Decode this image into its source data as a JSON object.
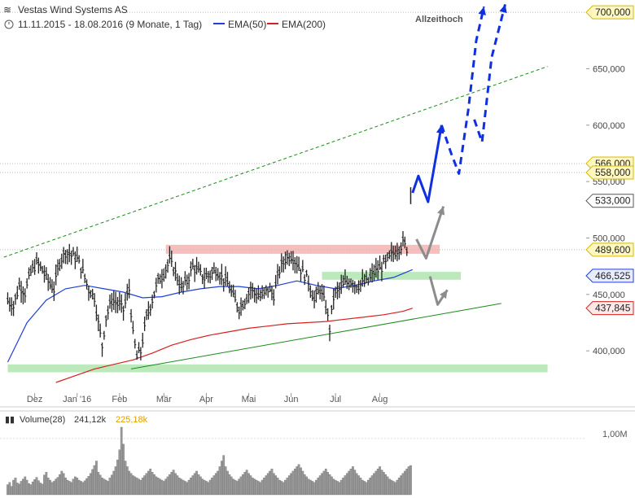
{
  "header": {
    "title": "Vestas Wind Systems AS",
    "period": "11.11.2015 - 18.08.2016 (9 Monate, 1 Tag)",
    "ema50_label": "EMA(50)",
    "ema200_label": "EMA(200)",
    "annotation": "Allzeithoch"
  },
  "colors": {
    "ema50": "#1f3fd6",
    "ema200": "#d62020",
    "resistance_zone": "#f5a3a3",
    "support_zone": "#9fe0a0",
    "trend_green": "#1a8a1a",
    "projection_blue": "#1030e0",
    "projection_grey": "#8c8c8c",
    "price_bar": "#222222",
    "volume_bar": "#999999"
  },
  "chart_data": {
    "type": "ohlc",
    "ylim": [
      372,
      708
    ],
    "xlim_index": [
      0,
      220
    ],
    "months": [
      {
        "label": "Dez",
        "index": 14
      },
      {
        "label": "Jan '16",
        "index": 36
      },
      {
        "label": "Feb",
        "index": 58
      },
      {
        "label": "Mär",
        "index": 81
      },
      {
        "label": "Apr",
        "index": 103
      },
      {
        "label": "Mai",
        "index": 125
      },
      {
        "label": "Jun",
        "index": 147
      },
      {
        "label": "Jul",
        "index": 170
      },
      {
        "label": "Aug",
        "index": 193
      }
    ],
    "y_ticks": [
      {
        "value": 400,
        "label": "400,000"
      },
      {
        "value": 450,
        "label": "450,000"
      },
      {
        "value": 500,
        "label": "500,000"
      },
      {
        "value": 550,
        "label": "550,000"
      },
      {
        "value": 600,
        "label": "600,000"
      },
      {
        "value": 650,
        "label": "650,000"
      }
    ],
    "marked_levels": [
      {
        "value": 700,
        "label": "700,000",
        "style": "yellow"
      },
      {
        "value": 566,
        "label": "566,000",
        "style": "yellow"
      },
      {
        "value": 558,
        "label": "558,000",
        "style": "yellow"
      },
      {
        "value": 533,
        "label": "533,000",
        "style": "white"
      },
      {
        "value": 489.6,
        "label": "489,600",
        "style": "yellow"
      },
      {
        "value": 466.525,
        "label": "466,525",
        "style": "blue"
      },
      {
        "value": 437.845,
        "label": "437,845",
        "style": "red"
      }
    ],
    "dotted_levels": [
      700,
      566,
      558,
      489.6
    ],
    "zones": [
      {
        "name": "resistance",
        "from_index": 82,
        "to_index": 224,
        "low": 486,
        "high": 494
      },
      {
        "name": "support-mid",
        "from_index": 163,
        "to_index": 235,
        "low": 463,
        "high": 470
      },
      {
        "name": "support-low",
        "from_index": 0,
        "to_index": 280,
        "low": 381,
        "high": 388
      }
    ],
    "trendlines": [
      {
        "name": "green-dashed-channel",
        "from": [
          -2,
          483
        ],
        "to": [
          280,
          652
        ]
      },
      {
        "name": "green-support",
        "from": [
          64,
          384
        ],
        "to": [
          256,
          442
        ]
      }
    ],
    "projections": [
      {
        "name": "grey-path-upper",
        "points": [
          [
            212,
            499
          ],
          [
            217,
            482
          ],
          [
            226,
            528
          ]
        ]
      },
      {
        "name": "grey-path-lower",
        "points": [
          [
            219,
            466
          ],
          [
            223,
            441
          ],
          [
            228,
            454
          ]
        ]
      },
      {
        "name": "blue-solid",
        "points": [
          [
            210,
            540
          ],
          [
            213,
            555
          ],
          [
            218,
            532
          ],
          [
            225,
            600
          ]
        ]
      },
      {
        "name": "blue-dashed",
        "points": [
          [
            225,
            600
          ],
          [
            230,
            575
          ],
          [
            234,
            557
          ],
          [
            239,
            615
          ],
          [
            243,
            675
          ],
          [
            247,
            705
          ]
        ]
      },
      {
        "name": "blue-dashed-2",
        "points": [
          [
            242,
            605
          ],
          [
            246,
            585
          ],
          [
            251,
            660
          ],
          [
            258,
            707
          ]
        ]
      }
    ],
    "ohlc_points": [
      [
        0,
        445
      ],
      [
        3,
        440
      ],
      [
        6,
        458
      ],
      [
        9,
        452
      ],
      [
        12,
        470
      ],
      [
        15,
        478
      ],
      [
        18,
        472
      ],
      [
        21,
        462
      ],
      [
        24,
        455
      ],
      [
        27,
        480
      ],
      [
        30,
        488
      ],
      [
        33,
        485
      ],
      [
        36,
        482
      ],
      [
        39,
        470
      ],
      [
        42,
        455
      ],
      [
        45,
        448
      ],
      [
        47,
        425
      ],
      [
        49,
        405
      ],
      [
        51,
        430
      ],
      [
        54,
        445
      ],
      [
        57,
        442
      ],
      [
        60,
        437
      ],
      [
        63,
        455
      ],
      [
        65,
        415
      ],
      [
        67,
        395
      ],
      [
        69,
        400
      ],
      [
        72,
        430
      ],
      [
        75,
        446
      ],
      [
        78,
        462
      ],
      [
        81,
        470
      ],
      [
        84,
        480
      ],
      [
        87,
        470
      ],
      [
        90,
        455
      ],
      [
        93,
        462
      ],
      [
        96,
        475
      ],
      [
        99,
        470
      ],
      [
        102,
        465
      ],
      [
        105,
        468
      ],
      [
        108,
        472
      ],
      [
        111,
        466
      ],
      [
        114,
        460
      ],
      [
        117,
        448
      ],
      [
        120,
        438
      ],
      [
        123,
        445
      ],
      [
        126,
        455
      ],
      [
        129,
        450
      ],
      [
        132,
        448
      ],
      [
        135,
        455
      ],
      [
        138,
        450
      ],
      [
        141,
        472
      ],
      [
        144,
        482
      ],
      [
        147,
        485
      ],
      [
        150,
        478
      ],
      [
        153,
        470
      ],
      [
        156,
        462
      ],
      [
        159,
        445
      ],
      [
        162,
        455
      ],
      [
        165,
        440
      ],
      [
        167,
        420
      ],
      [
        169,
        448
      ],
      [
        172,
        455
      ],
      [
        175,
        460
      ],
      [
        178,
        462
      ],
      [
        181,
        458
      ],
      [
        184,
        460
      ],
      [
        187,
        462
      ],
      [
        190,
        470
      ],
      [
        193,
        473
      ],
      [
        196,
        478
      ],
      [
        199,
        485
      ],
      [
        202,
        490
      ],
      [
        205,
        496
      ],
      [
        208,
        489
      ]
    ],
    "ema50": [
      [
        0,
        390
      ],
      [
        10,
        425
      ],
      [
        20,
        445
      ],
      [
        30,
        455
      ],
      [
        40,
        458
      ],
      [
        50,
        455
      ],
      [
        60,
        452
      ],
      [
        70,
        447
      ],
      [
        80,
        448
      ],
      [
        90,
        452
      ],
      [
        100,
        455
      ],
      [
        110,
        457
      ],
      [
        120,
        457
      ],
      [
        130,
        455
      ],
      [
        140,
        458
      ],
      [
        150,
        462
      ],
      [
        160,
        458
      ],
      [
        170,
        455
      ],
      [
        180,
        458
      ],
      [
        190,
        462
      ],
      [
        200,
        465
      ],
      [
        210,
        472
      ]
    ],
    "ema200": [
      [
        25,
        372
      ],
      [
        35,
        378
      ],
      [
        45,
        384
      ],
      [
        55,
        388
      ],
      [
        65,
        392
      ],
      [
        75,
        398
      ],
      [
        85,
        405
      ],
      [
        95,
        410
      ],
      [
        105,
        414
      ],
      [
        115,
        417
      ],
      [
        125,
        420
      ],
      [
        135,
        422
      ],
      [
        145,
        424
      ],
      [
        155,
        425
      ],
      [
        165,
        426
      ],
      [
        175,
        428
      ],
      [
        185,
        430
      ],
      [
        195,
        432
      ],
      [
        205,
        435
      ],
      [
        210,
        437.8
      ]
    ]
  },
  "volume": {
    "label": "Volume(28)",
    "value1": "241,12k",
    "value2": "225,18k",
    "axis_label": "1,00M",
    "axis_max": 1200000,
    "axis_tick": 1000000,
    "bars": [
      180,
      220,
      150,
      260,
      300,
      210,
      190,
      240,
      280,
      320,
      260,
      200,
      180,
      230,
      270,
      310,
      250,
      210,
      190,
      350,
      400,
      300,
      260,
      220,
      240,
      280,
      310,
      360,
      420,
      380,
      300,
      260,
      240,
      220,
      280,
      320,
      300,
      260,
      240,
      220,
      250,
      290,
      330,
      380,
      450,
      520,
      600,
      400,
      350,
      300,
      280,
      260,
      240,
      300,
      350,
      420,
      500,
      620,
      800,
      1200,
      900,
      600,
      500,
      420,
      380,
      340,
      320,
      300,
      280,
      260,
      300,
      340,
      380,
      420,
      460,
      400,
      360,
      320,
      300,
      280,
      260,
      240,
      280,
      320,
      360,
      400,
      440,
      380,
      340,
      300,
      280,
      260,
      240,
      220,
      260,
      300,
      340,
      380,
      420,
      360,
      320,
      280,
      260,
      240,
      220,
      260,
      300,
      340,
      380,
      420,
      500,
      600,
      700,
      500,
      420,
      360,
      320,
      280,
      260,
      240,
      280,
      320,
      360,
      400,
      440,
      380,
      340,
      300,
      280,
      260,
      240,
      220,
      260,
      300,
      340,
      380,
      420,
      460,
      380,
      340,
      300,
      260,
      240,
      220,
      260,
      300,
      340,
      380,
      420,
      460,
      500,
      540,
      480,
      420,
      360,
      320,
      280,
      260,
      240,
      220,
      260,
      300,
      340,
      380,
      420,
      460,
      400,
      360,
      320,
      280,
      260,
      240,
      220,
      260,
      300,
      340,
      380,
      420,
      460,
      500,
      440,
      380,
      340,
      300,
      260,
      240,
      220,
      260,
      300,
      340,
      380,
      420,
      460,
      500,
      440,
      400,
      360,
      320,
      280,
      260,
      240,
      220,
      260,
      300,
      340,
      380,
      420,
      460,
      500,
      520
    ]
  }
}
